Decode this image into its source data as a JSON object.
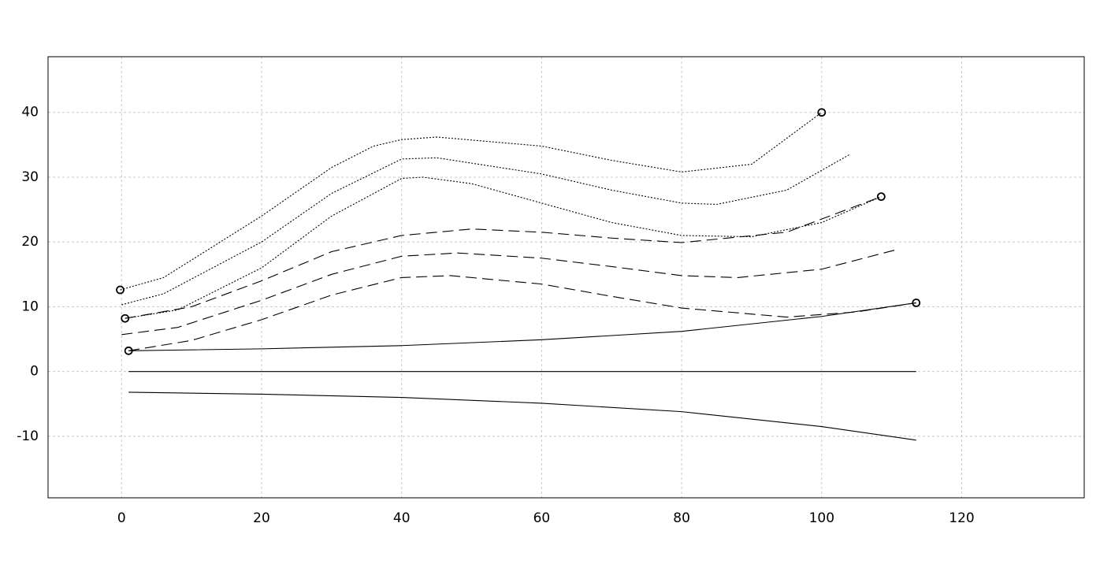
{
  "chart_data": {
    "type": "line",
    "xlim": [
      -10.5,
      137.5
    ],
    "ylim": [
      -19.5,
      48.6
    ],
    "xticks": [
      0,
      20,
      40,
      60,
      80,
      100,
      120
    ],
    "yticks": [
      -10,
      0,
      10,
      20,
      30,
      40
    ],
    "grid": true,
    "series": [
      {
        "style": "solid",
        "color": "#000000",
        "x": [
          1,
          20,
          40,
          60,
          80,
          100,
          113.5
        ],
        "values": [
          3.2,
          3.5,
          4.0,
          4.9,
          6.2,
          8.5,
          10.6
        ]
      },
      {
        "style": "solid",
        "color": "#000000",
        "x": [
          1,
          113.5
        ],
        "values": [
          0,
          0
        ]
      },
      {
        "style": "solid",
        "color": "#000000",
        "x": [
          1,
          20,
          40,
          60,
          80,
          100,
          113.5
        ],
        "values": [
          -3.2,
          -3.5,
          -4.0,
          -4.9,
          -6.2,
          -8.5,
          -10.6
        ]
      },
      {
        "style": "dashed",
        "color": "#000000",
        "x": [
          1,
          10,
          20,
          30,
          40,
          47,
          60,
          70,
          80,
          95,
          105,
          113.5
        ],
        "values": [
          3.2,
          4.8,
          8,
          11.8,
          14.5,
          14.8,
          13.5,
          11.6,
          9.8,
          8.4,
          9.2,
          10.6
        ]
      },
      {
        "style": "dashed",
        "color": "#000000",
        "x": [
          0,
          8,
          20,
          30,
          40,
          48,
          60,
          70,
          80,
          88,
          100,
          111
        ],
        "values": [
          5.7,
          6.8,
          11,
          15,
          17.8,
          18.3,
          17.5,
          16.2,
          14.8,
          14.5,
          15.8,
          18.9
        ]
      },
      {
        "style": "dashed",
        "color": "#000000",
        "x": [
          0.5,
          10,
          20,
          30,
          40,
          50,
          60,
          70,
          80,
          95,
          108.5
        ],
        "values": [
          8.2,
          10,
          14,
          18.5,
          21,
          22,
          21.5,
          20.6,
          19.9,
          21.5,
          27
        ]
      },
      {
        "style": "dotted",
        "color": "#000000",
        "x": [
          0.5,
          8,
          20,
          30,
          40,
          43,
          50,
          60,
          70,
          80,
          90,
          100,
          108.5
        ],
        "values": [
          8.2,
          9.5,
          16,
          24,
          29.8,
          30,
          29,
          26,
          23,
          21,
          20.8,
          23,
          27
        ]
      },
      {
        "style": "dotted",
        "color": "#000000",
        "x": [
          0,
          6,
          20,
          30,
          40,
          45,
          60,
          70,
          80,
          85,
          95,
          104
        ],
        "values": [
          10.3,
          12,
          20,
          27.5,
          32.8,
          33,
          30.5,
          28,
          26,
          25.8,
          28,
          33.5
        ]
      },
      {
        "style": "dotted",
        "color": "#000000",
        "x": [
          -0.2,
          6,
          20,
          30,
          36,
          40,
          45,
          60,
          70,
          80,
          90,
          100
        ],
        "values": [
          12.6,
          14.5,
          24,
          31.5,
          34.8,
          35.8,
          36.2,
          34.8,
          32.6,
          30.8,
          32,
          40
        ]
      }
    ],
    "markers": {
      "color": "#000000",
      "x": [
        -0.2,
        0.5,
        1,
        100,
        108.5,
        113.5
      ],
      "values": [
        12.6,
        8.2,
        3.2,
        40,
        27,
        10.6
      ]
    }
  }
}
